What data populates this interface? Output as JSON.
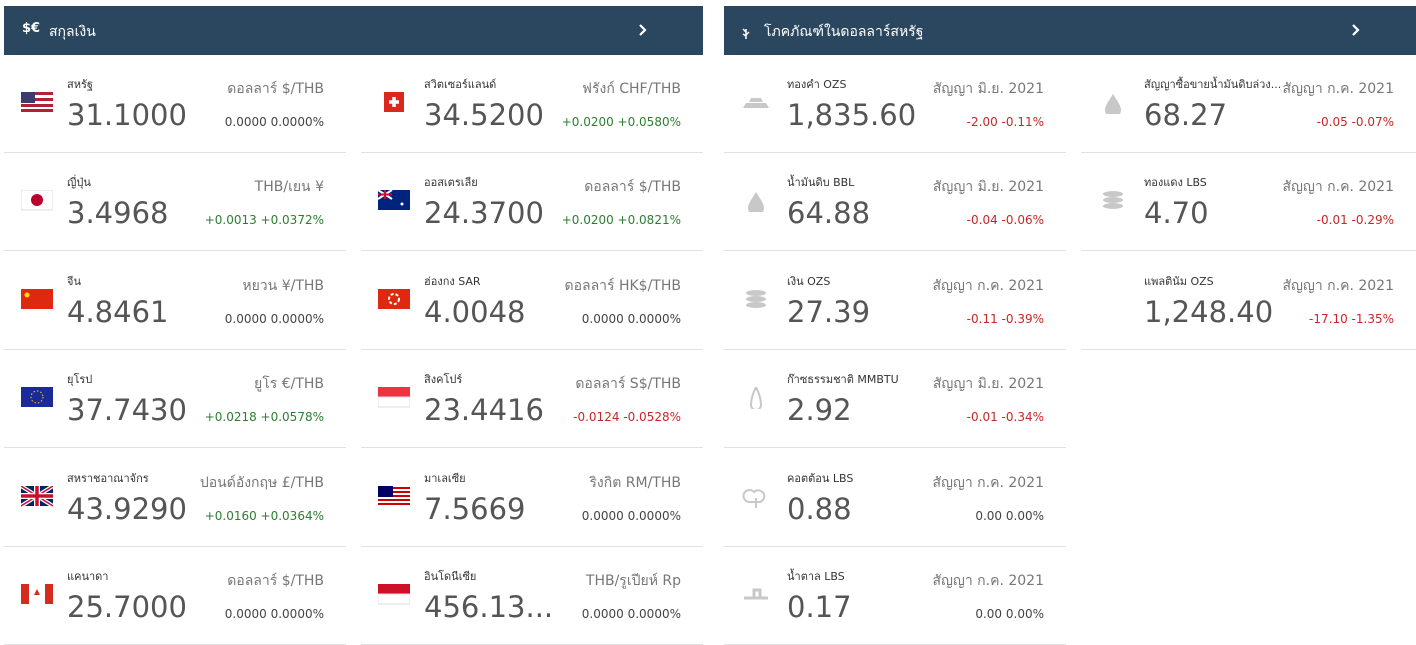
{
  "currency": {
    "icon": "$€",
    "title": "สกุลเงิน",
    "columns": [
      [
        {
          "name": "สหรัฐ",
          "unit": "ดอลลาร์ $/THB",
          "value": "31.1000",
          "change": "0.0000 0.0000%"
        },
        {
          "name": "ญี่ปุ่น",
          "unit": "THB/เยน ¥",
          "value": "3.4968",
          "change": "+0.0013 +0.0372%"
        },
        {
          "name": "จีน",
          "unit": "หยวน ¥/THB",
          "value": "4.8461",
          "change": "0.0000 0.0000%"
        },
        {
          "name": "ยุโรป",
          "unit": "ยูโร €/THB",
          "value": "37.7430",
          "change": "+0.0218 +0.0578%"
        },
        {
          "name": "สหราชอาณาจักร",
          "unit": "ปอนด์อังกฤษ £/THB",
          "value": "43.9290",
          "change": "+0.0160 +0.0364%"
        },
        {
          "name": "แคนาดา",
          "unit": "ดอลลาร์ $/THB",
          "value": "25.7000",
          "change": "0.0000 0.0000%"
        }
      ],
      [
        {
          "name": "สวิตเซอร์แลนด์",
          "unit": "ฟรังก์ CHF/THB",
          "value": "34.5200",
          "change": "+0.0200 +0.0580%"
        },
        {
          "name": "ออสเตรเลีย",
          "unit": "ดอลลาร์ $/THB",
          "value": "24.3700",
          "change": "+0.0200 +0.0821%"
        },
        {
          "name": "ฮ่องกง SAR",
          "unit": "ดอลลาร์ HK$/THB",
          "value": "4.0048",
          "change": "0.0000 0.0000%"
        },
        {
          "name": "สิงคโปร์",
          "unit": "ดอลลาร์ S$/THB",
          "value": "23.4416",
          "change": "-0.0124 -0.0528%"
        },
        {
          "name": "มาเลเซีย",
          "unit": "ริงกิต RM/THB",
          "value": "7.5669",
          "change": "0.0000 0.0000%"
        },
        {
          "name": "อินโดนีเซีย",
          "unit": "THB/รูเปียห์ Rp",
          "value": "456.13...",
          "change": "0.0000 0.0000%"
        }
      ]
    ]
  },
  "commodities": {
    "title": "โภคภัณฑ์ในดอลลาร์สหรัฐ",
    "columns": [
      [
        {
          "name": "ทองคำ OZS",
          "unit": "สัญญา มิ.ย. 2021",
          "value": "1,835.60",
          "change": "-2.00 -0.11%"
        },
        {
          "name": "น้ำมันดิบ BBL",
          "unit": "สัญญา มิ.ย. 2021",
          "value": "64.88",
          "change": "-0.04 -0.06%"
        },
        {
          "name": "เงิน OZS",
          "unit": "สัญญา ก.ค. 2021",
          "value": "27.39",
          "change": "-0.11 -0.39%"
        },
        {
          "name": "ก๊าซธรรมชาติ MMBTU",
          "unit": "สัญญา มิ.ย. 2021",
          "value": "2.92",
          "change": "-0.01 -0.34%"
        },
        {
          "name": "คอตต้อน LBS",
          "unit": "สัญญา ก.ค. 2021",
          "value": "0.88",
          "change": "0.00 0.00%"
        },
        {
          "name": "น้ำตาล LBS",
          "unit": "สัญญา ก.ค. 2021",
          "value": "0.17",
          "change": "0.00 0.00%"
        }
      ],
      [
        {
          "name": "สัญญาซื้อขายน้ำมันดิบล่วง...",
          "unit": "สัญญา ก.ค. 2021",
          "value": "68.27",
          "change": "-0.05 -0.07%"
        },
        {
          "name": "ทองแดง LBS",
          "unit": "สัญญา ก.ค. 2021",
          "value": "4.70",
          "change": "-0.01 -0.29%"
        },
        {
          "name": "แพลตินัม OZS",
          "unit": "สัญญา ก.ค. 2021",
          "value": "1,248.40",
          "change": "-17.10 -1.35%"
        }
      ]
    ]
  }
}
